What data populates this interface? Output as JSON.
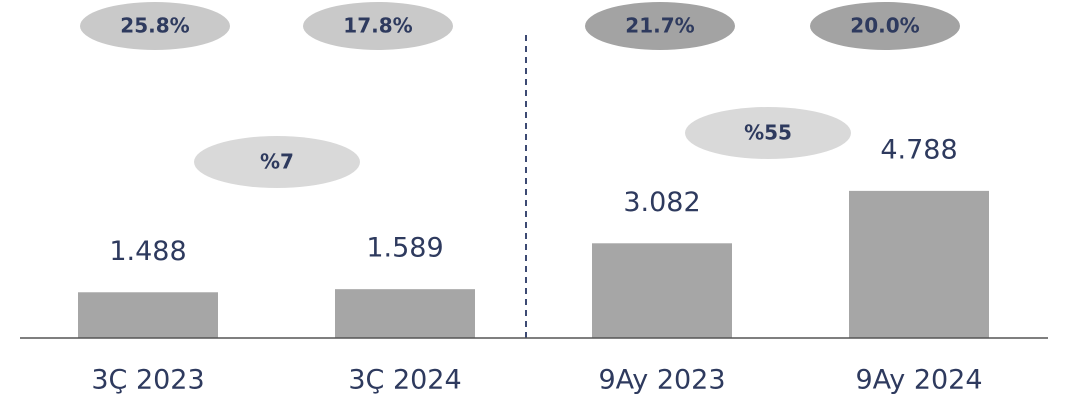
{
  "chart_data": {
    "type": "bar",
    "categories": [
      "3Ç 2023",
      "3Ç 2024",
      "9Ay 2023",
      "9Ay 2024"
    ],
    "values": [
      1488,
      1589,
      3082,
      4788
    ],
    "value_labels": [
      "1.488",
      "1.589",
      "3.082",
      "4.788"
    ],
    "color": "#a6a6a6",
    "ylim": [
      0,
      11000
    ],
    "margin_labels": [
      "25.8%",
      "17.8%",
      "21.7%",
      "20.0%"
    ],
    "growth_labels": [
      "%7",
      "%55"
    ]
  }
}
